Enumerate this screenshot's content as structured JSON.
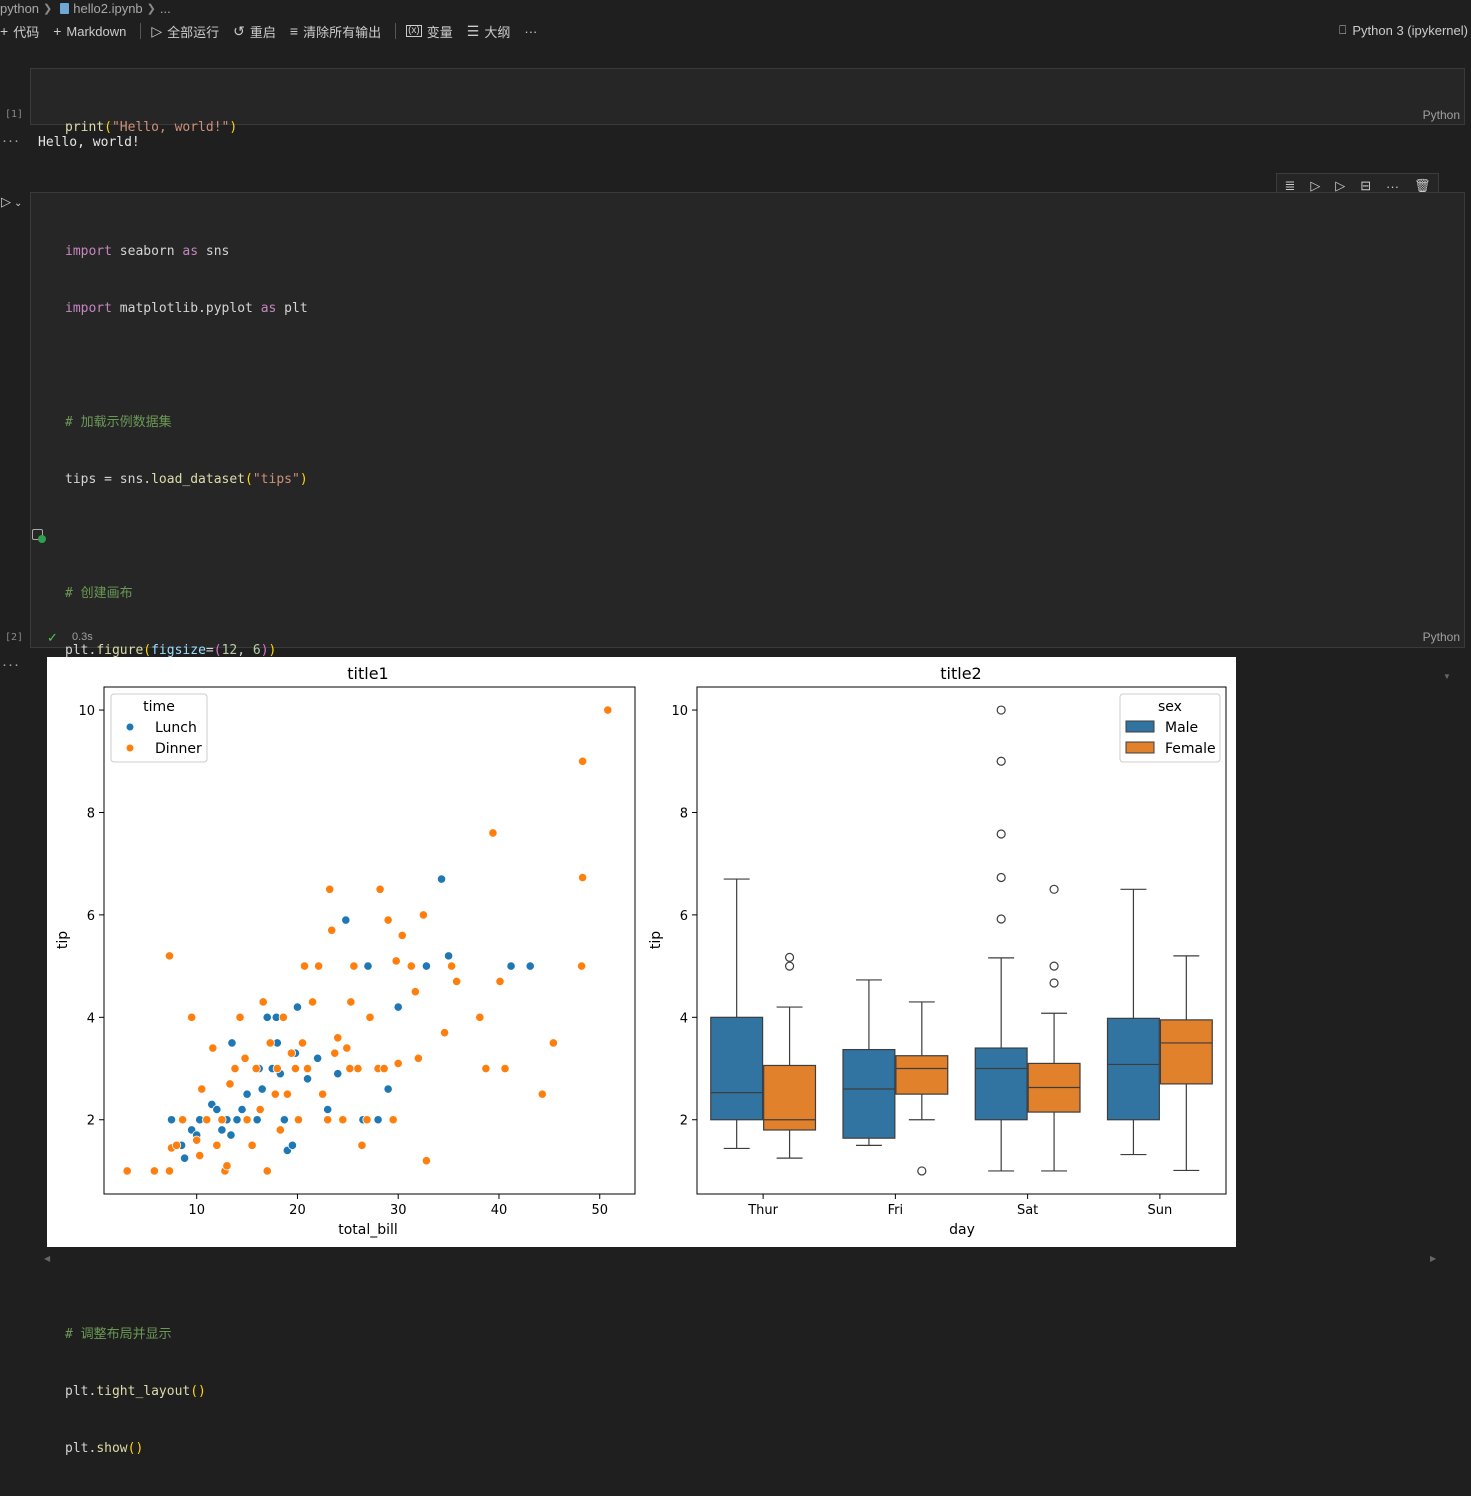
{
  "breadcrumb": {
    "folder": "python",
    "file": "hello2.ipynb",
    "more": "..."
  },
  "toolbar": {
    "code": "代码",
    "markdown": "Markdown",
    "run_all": "全部运行",
    "restart": "重启",
    "clear_outputs": "清除所有输出",
    "variables": "变量",
    "outline": "大纲",
    "more": "···"
  },
  "kernel": "Python 3 (ipykernel)",
  "cells": [
    {
      "exec_count": "[1]",
      "language": "Python",
      "output": "Hello, world!"
    },
    {
      "exec_count": "[2]",
      "language": "Python",
      "status_time": "0.3s"
    }
  ],
  "colors": {
    "male": "#1f77b4",
    "female": "#ff7f0e",
    "lunch": "#1f77b4",
    "dinner": "#ff7f0e"
  },
  "chart_data": [
    {
      "type": "scatter",
      "title": "title1",
      "xlabel": "total_bill",
      "ylabel": "tip",
      "xlim": [
        0.8,
        53.5
      ],
      "ylim": [
        0.55,
        10.45
      ],
      "xticks": [
        10,
        20,
        30,
        40,
        50
      ],
      "yticks": [
        2,
        4,
        6,
        8,
        10
      ],
      "legend": {
        "title": "time",
        "position": "top-left",
        "entries": [
          "Lunch",
          "Dinner"
        ]
      },
      "series": [
        {
          "name": "Lunch",
          "points": [
            [
              7.5,
              2.0
            ],
            [
              8.5,
              1.5
            ],
            [
              8.8,
              1.25
            ],
            [
              9.5,
              1.8
            ],
            [
              10.0,
              1.7
            ],
            [
              10.3,
              2.0
            ],
            [
              11.0,
              2.0
            ],
            [
              11.5,
              2.3
            ],
            [
              12.0,
              2.2
            ],
            [
              12.5,
              1.8
            ],
            [
              13.0,
              2.0
            ],
            [
              13.4,
              1.7
            ],
            [
              13.5,
              3.5
            ],
            [
              14.0,
              2.0
            ],
            [
              15.0,
              2.5
            ],
            [
              16.0,
              2.0
            ],
            [
              16.5,
              2.6
            ],
            [
              17.0,
              4.0
            ],
            [
              17.5,
              3.0
            ],
            [
              18.0,
              3.5
            ],
            [
              18.3,
              2.9
            ],
            [
              18.7,
              2.0
            ],
            [
              19.0,
              1.4
            ],
            [
              19.5,
              1.5
            ],
            [
              20.0,
              4.2
            ],
            [
              21.0,
              2.8
            ],
            [
              22.0,
              3.2
            ],
            [
              23.0,
              2.2
            ],
            [
              24.0,
              2.9
            ],
            [
              24.8,
              5.9
            ],
            [
              26.5,
              2.0
            ],
            [
              27.0,
              5.0
            ],
            [
              28.0,
              2.0
            ],
            [
              29.0,
              2.6
            ],
            [
              30.0,
              4.2
            ],
            [
              32.8,
              5.0
            ],
            [
              34.3,
              6.7
            ],
            [
              35.0,
              5.2
            ],
            [
              41.2,
              5.0
            ],
            [
              43.1,
              5.0
            ],
            [
              16.2,
              3.0
            ],
            [
              14.5,
              2.2
            ],
            [
              19.8,
              3.3
            ],
            [
              17.9,
              4.0
            ]
          ]
        },
        {
          "name": "Dinner",
          "points": [
            [
              3.1,
              1.0
            ],
            [
              5.8,
              1.0
            ],
            [
              7.3,
              1.0
            ],
            [
              7.3,
              5.2
            ],
            [
              7.5,
              1.45
            ],
            [
              8.0,
              1.5
            ],
            [
              8.6,
              2.0
            ],
            [
              9.5,
              4.0
            ],
            [
              10.0,
              1.6
            ],
            [
              10.3,
              1.3
            ],
            [
              10.5,
              2.6
            ],
            [
              11.0,
              2.0
            ],
            [
              11.6,
              3.4
            ],
            [
              12.0,
              1.5
            ],
            [
              12.5,
              2.0
            ],
            [
              12.8,
              1.0
            ],
            [
              13.0,
              1.1
            ],
            [
              13.3,
              2.7
            ],
            [
              13.8,
              3.0
            ],
            [
              14.3,
              4.0
            ],
            [
              14.8,
              3.2
            ],
            [
              15.0,
              2.0
            ],
            [
              15.5,
              1.5
            ],
            [
              15.9,
              3.0
            ],
            [
              16.3,
              2.2
            ],
            [
              16.6,
              4.3
            ],
            [
              17.0,
              1.0
            ],
            [
              17.3,
              3.5
            ],
            [
              17.8,
              2.5
            ],
            [
              18.0,
              3.0
            ],
            [
              18.3,
              1.8
            ],
            [
              18.6,
              4.0
            ],
            [
              19.0,
              2.5
            ],
            [
              19.4,
              3.3
            ],
            [
              19.8,
              3.0
            ],
            [
              20.1,
              2.0
            ],
            [
              20.5,
              3.5
            ],
            [
              20.7,
              5.0
            ],
            [
              21.0,
              3.0
            ],
            [
              21.5,
              4.3
            ],
            [
              22.1,
              5.0
            ],
            [
              22.5,
              2.5
            ],
            [
              23.0,
              2.0
            ],
            [
              23.2,
              6.5
            ],
            [
              23.4,
              5.7
            ],
            [
              23.7,
              3.3
            ],
            [
              24.0,
              3.6
            ],
            [
              24.5,
              2.0
            ],
            [
              24.9,
              3.4
            ],
            [
              25.2,
              3.0
            ],
            [
              25.3,
              4.3
            ],
            [
              25.6,
              5.0
            ],
            [
              26.0,
              3.0
            ],
            [
              26.4,
              1.5
            ],
            [
              26.9,
              2.0
            ],
            [
              27.2,
              4.0
            ],
            [
              28.0,
              3.0
            ],
            [
              28.2,
              6.5
            ],
            [
              28.6,
              3.0
            ],
            [
              29.0,
              5.9
            ],
            [
              29.5,
              2.0
            ],
            [
              29.8,
              5.1
            ],
            [
              30.0,
              3.1
            ],
            [
              30.4,
              5.6
            ],
            [
              31.3,
              5.0
            ],
            [
              31.7,
              4.5
            ],
            [
              32.0,
              3.2
            ],
            [
              32.5,
              6.0
            ],
            [
              32.8,
              1.2
            ],
            [
              34.6,
              3.7
            ],
            [
              35.3,
              5.0
            ],
            [
              35.8,
              4.7
            ],
            [
              38.1,
              4.0
            ],
            [
              38.7,
              3.0
            ],
            [
              39.4,
              7.6
            ],
            [
              40.1,
              4.7
            ],
            [
              40.6,
              3.0
            ],
            [
              44.3,
              2.5
            ],
            [
              45.4,
              3.5
            ],
            [
              48.2,
              5.0
            ],
            [
              48.3,
              6.73
            ],
            [
              48.3,
              9.0
            ],
            [
              50.8,
              10.0
            ]
          ]
        }
      ]
    },
    {
      "type": "box",
      "title": "title2",
      "xlabel": "day",
      "ylabel": "tip",
      "categories": [
        "Thur",
        "Fri",
        "Sat",
        "Sun"
      ],
      "ylim": [
        0.55,
        10.45
      ],
      "yticks": [
        2,
        4,
        6,
        8,
        10
      ],
      "legend": {
        "title": "sex",
        "position": "top-right",
        "entries": [
          "Male",
          "Female"
        ]
      },
      "series": [
        {
          "name": "Male",
          "boxes": [
            {
              "q1": 2.0,
              "median": 2.53,
              "q3": 4.0,
              "whisker_low": 1.44,
              "whisker_high": 6.7,
              "outliers": []
            },
            {
              "q1": 1.64,
              "median": 2.6,
              "q3": 3.37,
              "whisker_low": 1.5,
              "whisker_high": 4.73,
              "outliers": []
            },
            {
              "q1": 2.0,
              "median": 3.0,
              "q3": 3.4,
              "whisker_low": 1.0,
              "whisker_high": 5.16,
              "outliers": [
                5.92,
                6.73,
                7.58,
                9.0,
                10.0
              ]
            },
            {
              "q1": 2.0,
              "median": 3.08,
              "q3": 3.98,
              "whisker_low": 1.32,
              "whisker_high": 6.5,
              "outliers": []
            }
          ]
        },
        {
          "name": "Female",
          "boxes": [
            {
              "q1": 1.8,
              "median": 2.0,
              "q3": 3.06,
              "whisker_low": 1.25,
              "whisker_high": 4.2,
              "outliers": [
                5.0,
                5.17
              ]
            },
            {
              "q1": 2.5,
              "median": 3.0,
              "q3": 3.25,
              "whisker_low": 2.0,
              "whisker_high": 4.3,
              "outliers": [
                1.0
              ]
            },
            {
              "q1": 2.15,
              "median": 2.63,
              "q3": 3.1,
              "whisker_low": 1.0,
              "whisker_high": 4.08,
              "outliers": [
                4.67,
                5.0,
                6.5
              ]
            },
            {
              "q1": 2.7,
              "median": 3.5,
              "q3": 3.95,
              "whisker_low": 1.01,
              "whisker_high": 5.2,
              "outliers": []
            }
          ]
        }
      ]
    }
  ]
}
